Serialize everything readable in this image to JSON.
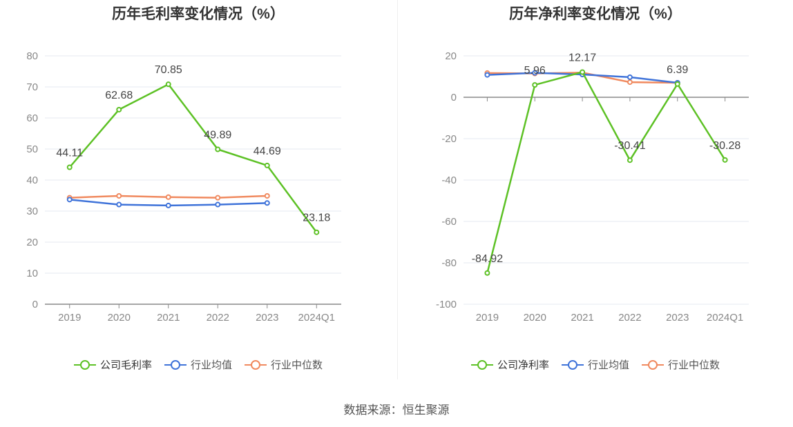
{
  "source_text": "数据来源：恒生聚源",
  "chart_data": [
    {
      "type": "line",
      "title": "历年毛利率变化情况（%）",
      "categories": [
        "2019",
        "2020",
        "2021",
        "2022",
        "2023",
        "2024Q1"
      ],
      "ylim": [
        0,
        80
      ],
      "yticks": [
        0,
        10,
        20,
        30,
        40,
        50,
        60,
        70,
        80
      ],
      "grid": true,
      "legend_position": "bottom",
      "series": [
        {
          "name": "公司毛利率",
          "color": "#5dc125",
          "values": [
            44.11,
            62.68,
            70.85,
            49.89,
            44.69,
            23.18
          ],
          "labels": [
            "44.11",
            "62.68",
            "70.85",
            "49.89",
            "44.69",
            "23.18"
          ]
        },
        {
          "name": "行业均值",
          "color": "#3f73d9",
          "values": [
            33.7,
            32.1,
            31.8,
            32.1,
            32.6,
            null
          ]
        },
        {
          "name": "行业中位数",
          "color": "#f0895e",
          "values": [
            34.3,
            34.9,
            34.5,
            34.3,
            34.9,
            null
          ]
        }
      ]
    },
    {
      "type": "line",
      "title": "历年净利率变化情况（%）",
      "categories": [
        "2019",
        "2020",
        "2021",
        "2022",
        "2023",
        "2024Q1"
      ],
      "ylim": [
        -100,
        20
      ],
      "yticks": [
        -100,
        -80,
        -60,
        -40,
        -20,
        0,
        20
      ],
      "grid": true,
      "legend_position": "bottom",
      "series": [
        {
          "name": "公司净利率",
          "color": "#5dc125",
          "values": [
            -84.92,
            5.96,
            12.17,
            -30.41,
            6.39,
            -30.28
          ],
          "labels": [
            "-84.92",
            "5.96",
            "12.17",
            "-30.41",
            "6.39",
            "-30.28"
          ]
        },
        {
          "name": "行业均值",
          "color": "#3f73d9",
          "values": [
            10.8,
            11.8,
            11.0,
            9.7,
            7.0,
            null
          ]
        },
        {
          "name": "行业中位数",
          "color": "#f0895e",
          "values": [
            11.7,
            11.5,
            11.9,
            7.3,
            7.0,
            null
          ]
        }
      ]
    }
  ]
}
